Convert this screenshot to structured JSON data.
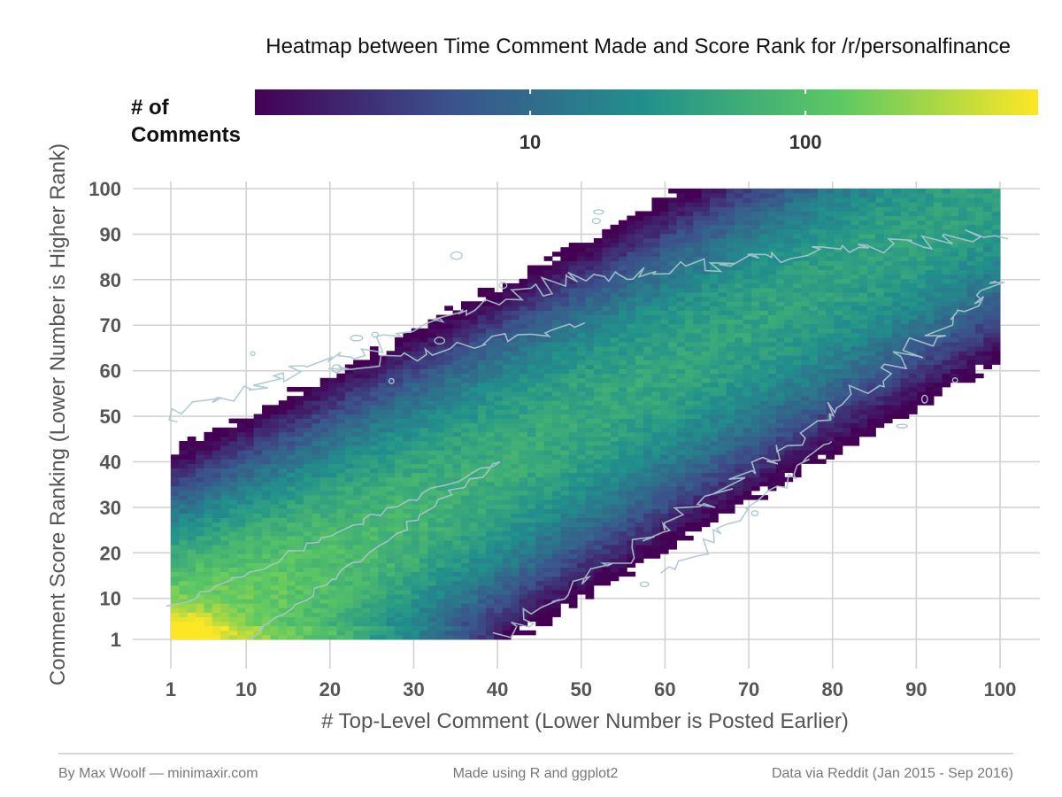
{
  "chart_data": {
    "type": "heatmap",
    "title": "Heatmap between Time Comment Made and Score Rank for /r/personalfinance",
    "xlabel": "# Top-Level Comment (Lower Number is Posted Earlier)",
    "ylabel": "Comment Score Ranking (Lower Number is Higher Rank)",
    "x_ticks": [
      1,
      10,
      20,
      30,
      40,
      50,
      60,
      70,
      80,
      90,
      100
    ],
    "y_ticks": [
      1,
      10,
      20,
      30,
      40,
      50,
      60,
      70,
      80,
      90,
      100
    ],
    "xlim": [
      1,
      100
    ],
    "ylim": [
      1,
      100
    ],
    "grid": true,
    "legend": {
      "title_line1": "# of",
      "title_line2": "Comments",
      "position": "top",
      "scale": "log",
      "ticks": [
        10,
        100
      ],
      "tick_labels": [
        "10",
        "100"
      ],
      "range": [
        1,
        700
      ]
    },
    "colormap": [
      "#440154",
      "#3b528b",
      "#21918c",
      "#5ec962",
      "#fde725"
    ],
    "contour_color": "#a9c7cf",
    "approx_counts": {
      "peak_at_1_1": 700,
      "diagonal_band_ridge": 100,
      "main_diagonal_mid": 40,
      "off_diagonal_corners": 1
    }
  },
  "footer": {
    "left": "By Max Woolf — minimaxir.com",
    "center": "Made using R and ggplot2",
    "right": "Data via Reddit (Jan 2015 - Sep 2016)"
  }
}
